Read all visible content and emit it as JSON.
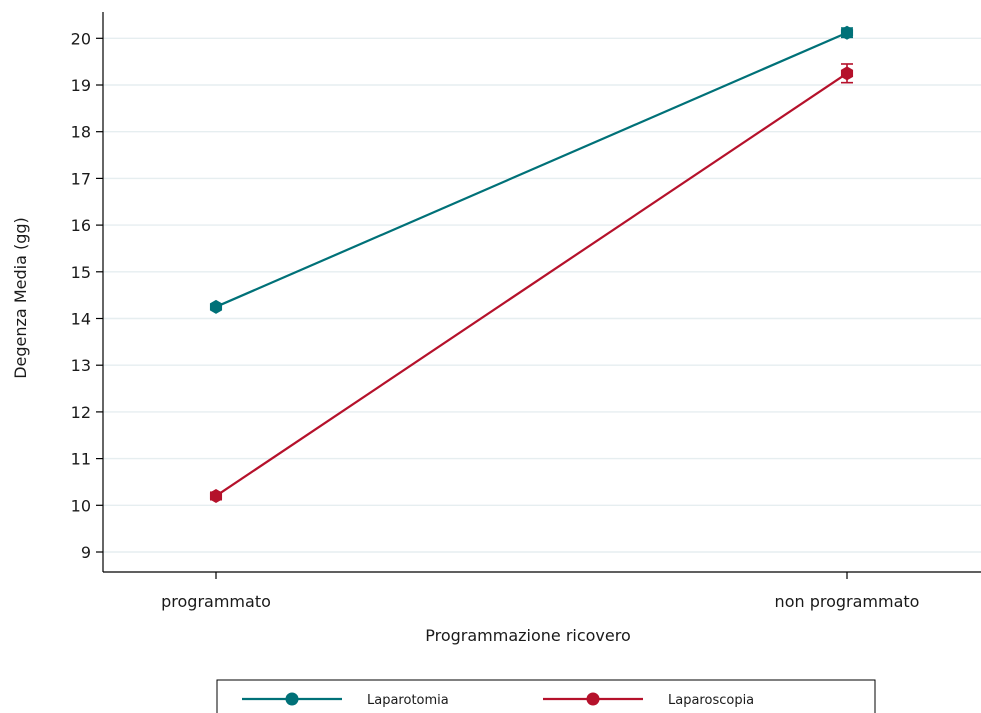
{
  "chart_data": {
    "type": "line",
    "xlabel": "Programmazione ricovero",
    "ylabel": "Degenza Media (gg)",
    "categories": [
      "programmato",
      "non programmato"
    ],
    "ylim": [
      8.8,
      20.6
    ],
    "yticks": [
      9,
      10,
      11,
      12,
      13,
      14,
      15,
      16,
      17,
      18,
      19,
      20
    ],
    "grid": true,
    "legend_position": "bottom",
    "series": [
      {
        "name": "Laparotomia",
        "color": "#007178",
        "values": [
          14.25,
          20.12
        ],
        "error": [
          [
            14.2,
            14.3
          ],
          [
            20.02,
            20.22
          ]
        ]
      },
      {
        "name": "Laparoscopia",
        "color": "#b5112b",
        "values": [
          10.2,
          19.25
        ],
        "error": [
          [
            10.12,
            10.28
          ],
          [
            19.05,
            19.45
          ]
        ]
      }
    ]
  }
}
